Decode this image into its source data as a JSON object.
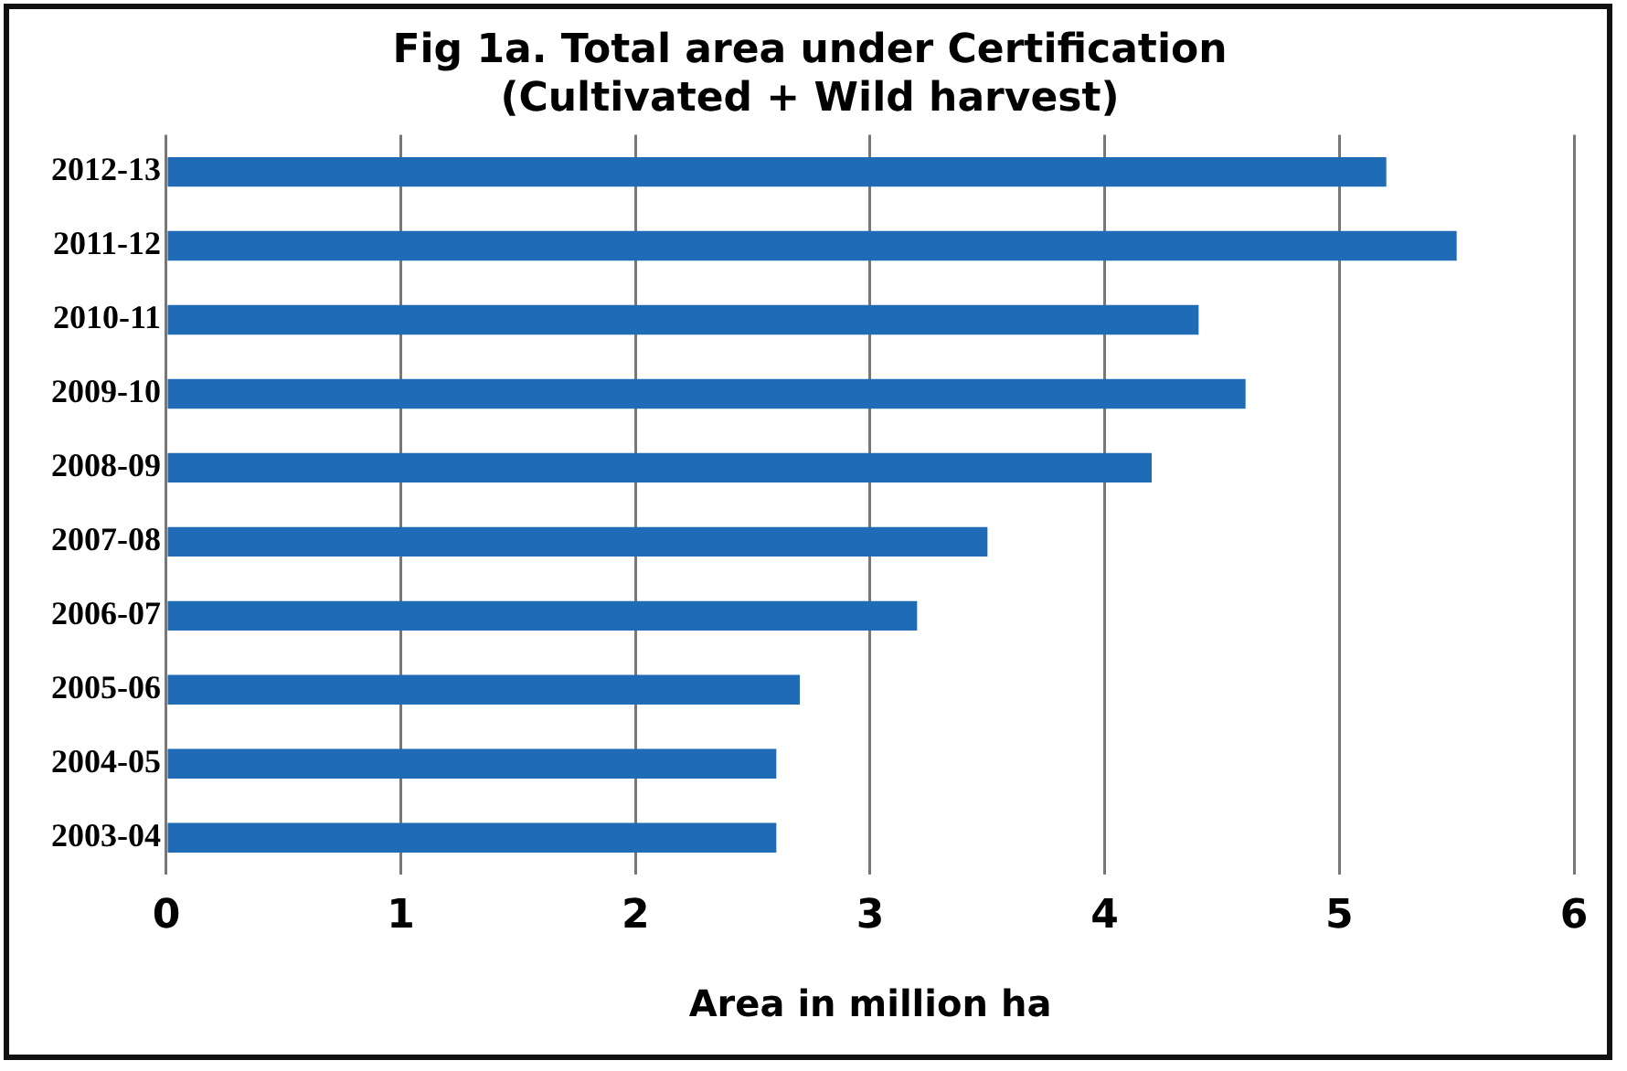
{
  "chart_data": {
    "type": "bar",
    "orientation": "horizontal",
    "title": [
      "Fig 1a. Total area under Certification",
      "(Cultivated + Wild harvest)"
    ],
    "xlabel": "Area in million ha",
    "categories": [
      "2012-13",
      "2011-12",
      "2010-11",
      "2009-10",
      "2008-09",
      "2007-08",
      "2006-07",
      "2005-06",
      "2004-05",
      "2003-04"
    ],
    "values": [
      5.2,
      5.5,
      4.4,
      4.6,
      4.2,
      3.5,
      3.2,
      2.7,
      2.6,
      2.6
    ],
    "color": "#1f6bb5",
    "xlim": [
      0,
      6
    ],
    "xticks": [
      0,
      1,
      2,
      3,
      4,
      5,
      6
    ],
    "grid": "x",
    "legend": false
  }
}
